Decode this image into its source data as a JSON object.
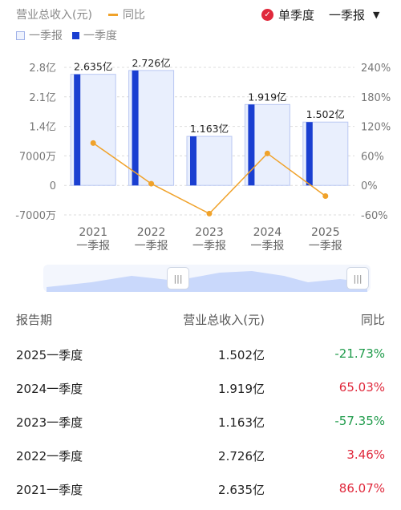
{
  "header": {
    "series_revenue_label": "营业总收入(元)",
    "series_yoy_label": "同比",
    "legend_box_label": "一季报",
    "legend_bar_label": "一季度",
    "mode_label": "单季度",
    "period_label": "一季报"
  },
  "colors": {
    "bar_dark": "#1a3fd1",
    "bar_light": "#e9effd",
    "line": "#f0a22a",
    "positive": "#e0283b",
    "negative": "#1e9b4a"
  },
  "chart_data": {
    "type": "bar",
    "categories": [
      "2021",
      "2022",
      "2023",
      "2024",
      "2025"
    ],
    "category_sublabel": "一季报",
    "series": [
      {
        "name": "一季度",
        "values": [
          2.635,
          2.726,
          1.163,
          1.919,
          1.502
        ],
        "unit": "亿"
      },
      {
        "name": "同比",
        "type": "line",
        "values": [
          86.07,
          3.46,
          -57.35,
          65.03,
          -21.73
        ],
        "unit": "%"
      }
    ],
    "bar_labels": [
      "2.635亿",
      "2.726亿",
      "1.163亿",
      "1.919亿",
      "1.502亿"
    ],
    "y_left_ticks": [
      "2.8亿",
      "2.1亿",
      "1.4亿",
      "7000万",
      "0",
      "-7000万"
    ],
    "y_right_ticks": [
      "240%",
      "180%",
      "120%",
      "60%",
      "0%",
      "-60%"
    ],
    "ylim_left": [
      -0.7,
      2.8
    ],
    "ylim_right": [
      -60,
      240
    ]
  },
  "slider": {
    "handle_glyph": "|||"
  },
  "table": {
    "headers": [
      "报告期",
      "营业总收入(元)",
      "同比"
    ],
    "rows": [
      {
        "period": "2025一季度",
        "revenue": "1.502亿",
        "yoy": "-21.73%"
      },
      {
        "period": "2024一季度",
        "revenue": "1.919亿",
        "yoy": "65.03%"
      },
      {
        "period": "2023一季度",
        "revenue": "1.163亿",
        "yoy": "-57.35%"
      },
      {
        "period": "2022一季度",
        "revenue": "2.726亿",
        "yoy": "3.46%"
      },
      {
        "period": "2021一季度",
        "revenue": "2.635亿",
        "yoy": "86.07%"
      }
    ]
  }
}
